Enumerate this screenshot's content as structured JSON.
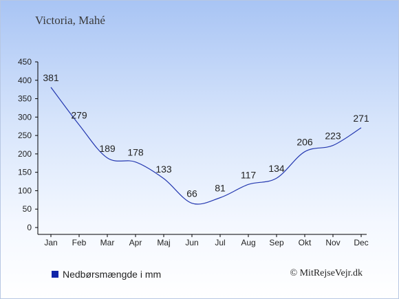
{
  "place": "Victoria, Mahé",
  "legend": {
    "label": "Nedbørsmængde i mm"
  },
  "credit": "© MitRejseVejr.dk",
  "colors": {
    "line": "#2438b0",
    "swatch": "#1024a8",
    "axis": "#000000",
    "text": "#222222"
  },
  "chart_data": {
    "type": "line",
    "categories": [
      "Jan",
      "Feb",
      "Mar",
      "Apr",
      "Maj",
      "Jun",
      "Jul",
      "Aug",
      "Sep",
      "Okt",
      "Nov",
      "Dec"
    ],
    "series": [
      {
        "name": "Nedbørsmængde i mm",
        "values": [
          381,
          279,
          189,
          178,
          133,
          66,
          81,
          117,
          134,
          206,
          223,
          271
        ]
      }
    ],
    "ylim": [
      0,
      450
    ],
    "yticks": [
      0,
      50,
      100,
      150,
      200,
      250,
      300,
      350,
      400,
      450
    ],
    "grid": false,
    "legend_position": "bottom-left"
  }
}
